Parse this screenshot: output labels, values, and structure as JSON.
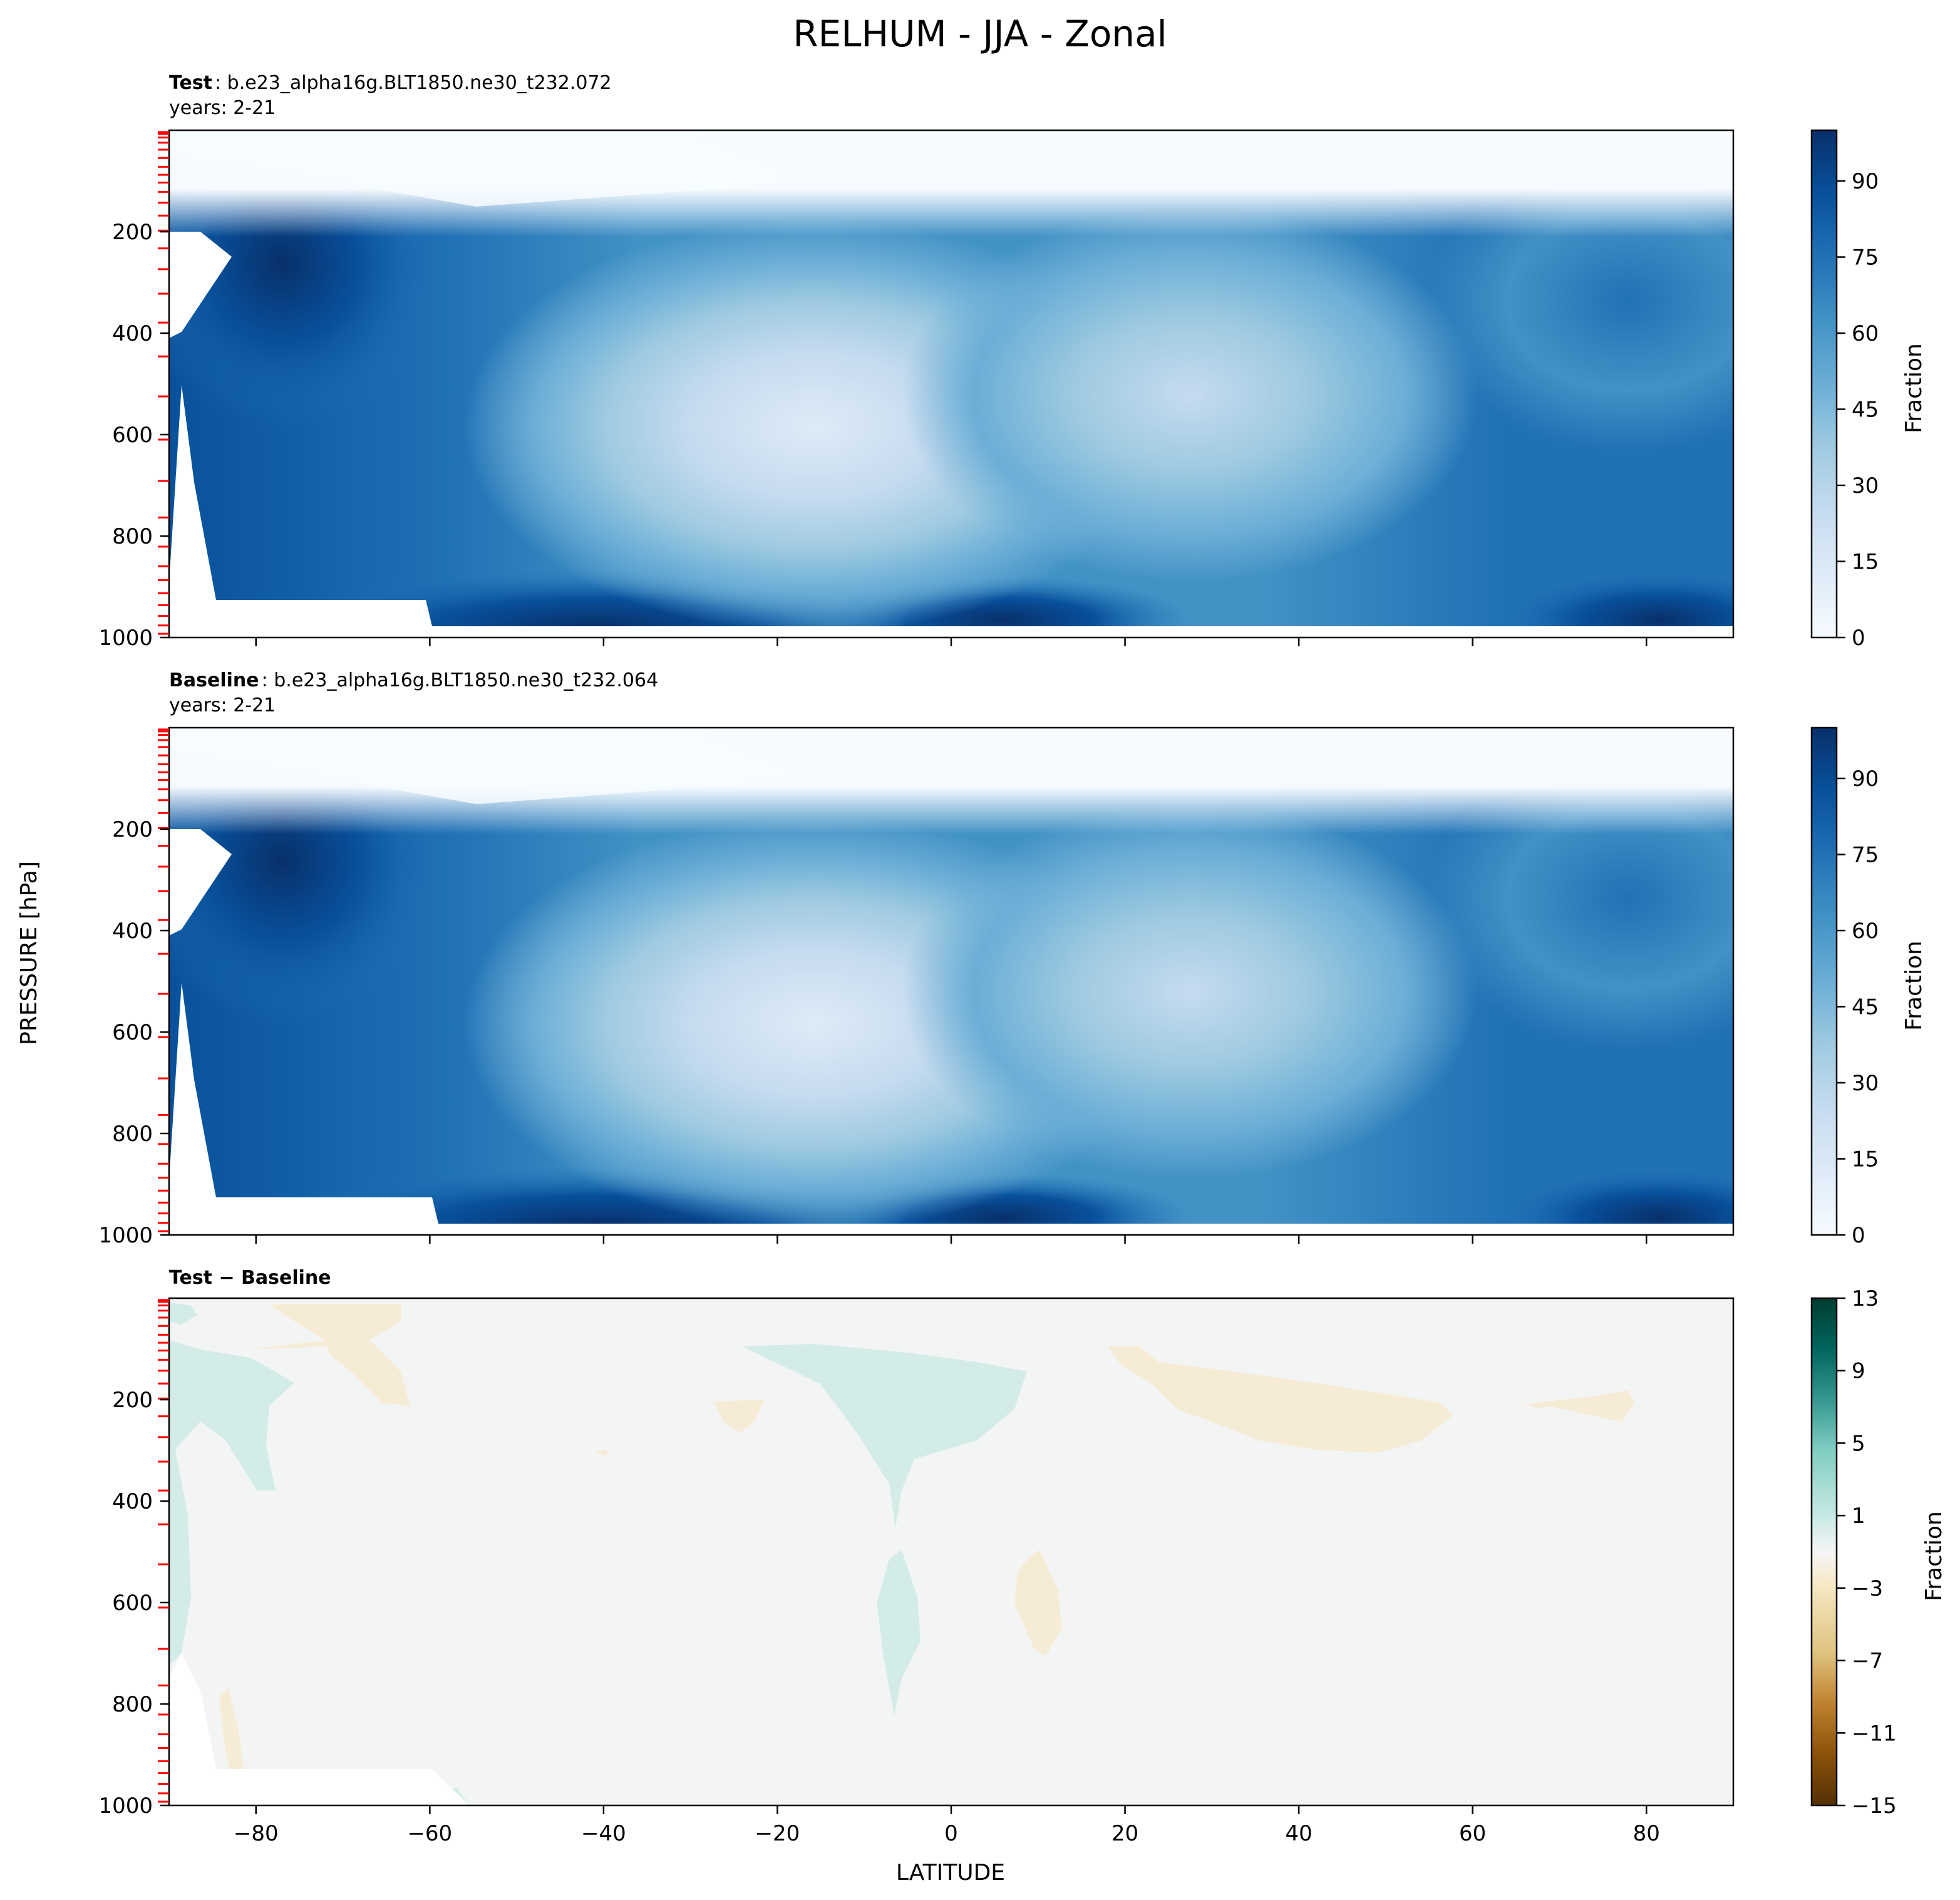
{
  "figure": {
    "title": "RELHUM - JJA - Zonal",
    "xlabel": "LATITUDE",
    "ylabel": "PRESSURE [hPa]"
  },
  "chart_data": [
    {
      "type": "heatmap",
      "panel": "test",
      "label_bold": "Test",
      "label_text": ": b.e23_alpha16g.BLT1850.ne30_t232.072",
      "years": "years: 2-21",
      "colorbar_label": "Fraction",
      "colorbar_ticks": [
        "0",
        "15",
        "30",
        "45",
        "60",
        "75",
        "90"
      ],
      "colorbar_range": [
        0,
        100
      ],
      "colormap": "Blues",
      "xlim": [
        -90,
        90
      ],
      "ylim": [
        1000,
        0
      ],
      "xticks": [
        "-80",
        "-60",
        "-40",
        "-20",
        "0",
        "20",
        "40",
        "60",
        "80"
      ],
      "yticks": [
        "200",
        "400",
        "600",
        "800",
        "1000"
      ]
    },
    {
      "type": "heatmap",
      "panel": "baseline",
      "label_bold": "Baseline",
      "label_text": ": b.e23_alpha16g.BLT1850.ne30_t232.064",
      "years": "years: 2-21",
      "colorbar_label": "Fraction",
      "colorbar_ticks": [
        "0",
        "15",
        "30",
        "45",
        "60",
        "75",
        "90"
      ],
      "colorbar_range": [
        0,
        100
      ],
      "colormap": "Blues",
      "xlim": [
        -90,
        90
      ],
      "ylim": [
        1000,
        0
      ],
      "xticks": [
        "-80",
        "-60",
        "-40",
        "-20",
        "0",
        "20",
        "40",
        "60",
        "80"
      ],
      "yticks": [
        "200",
        "400",
        "600",
        "800",
        "1000"
      ]
    },
    {
      "type": "heatmap",
      "panel": "difference",
      "label_bold": "Test − Baseline",
      "colorbar_label": "Fraction",
      "colorbar_ticks": [
        "13",
        "9",
        "5",
        "1",
        "−3",
        "−7",
        "−11",
        "−15"
      ],
      "colorbar_range": [
        -15,
        13
      ],
      "colormap": "BrBG",
      "xlim": [
        -90,
        90
      ],
      "ylim": [
        1000,
        0
      ],
      "xticks": [
        "−80",
        "−60",
        "−40",
        "−20",
        "0",
        "20",
        "40",
        "60",
        "80"
      ],
      "yticks": [
        "200",
        "400",
        "600",
        "800",
        "1000"
      ]
    }
  ],
  "colors": {
    "blues": [
      "#f7fbff",
      "#deebf7",
      "#c6dbef",
      "#9ecae1",
      "#6baed6",
      "#4292c6",
      "#2171b5",
      "#08519c",
      "#08306b"
    ],
    "brbg": [
      "#543005",
      "#8c510a",
      "#bf812d",
      "#dfc27d",
      "#f6e8c3",
      "#f5f5f5",
      "#c7eae5",
      "#80cdc1",
      "#35978f",
      "#01665e",
      "#003c30"
    ],
    "level_marker": "#ff0000"
  }
}
